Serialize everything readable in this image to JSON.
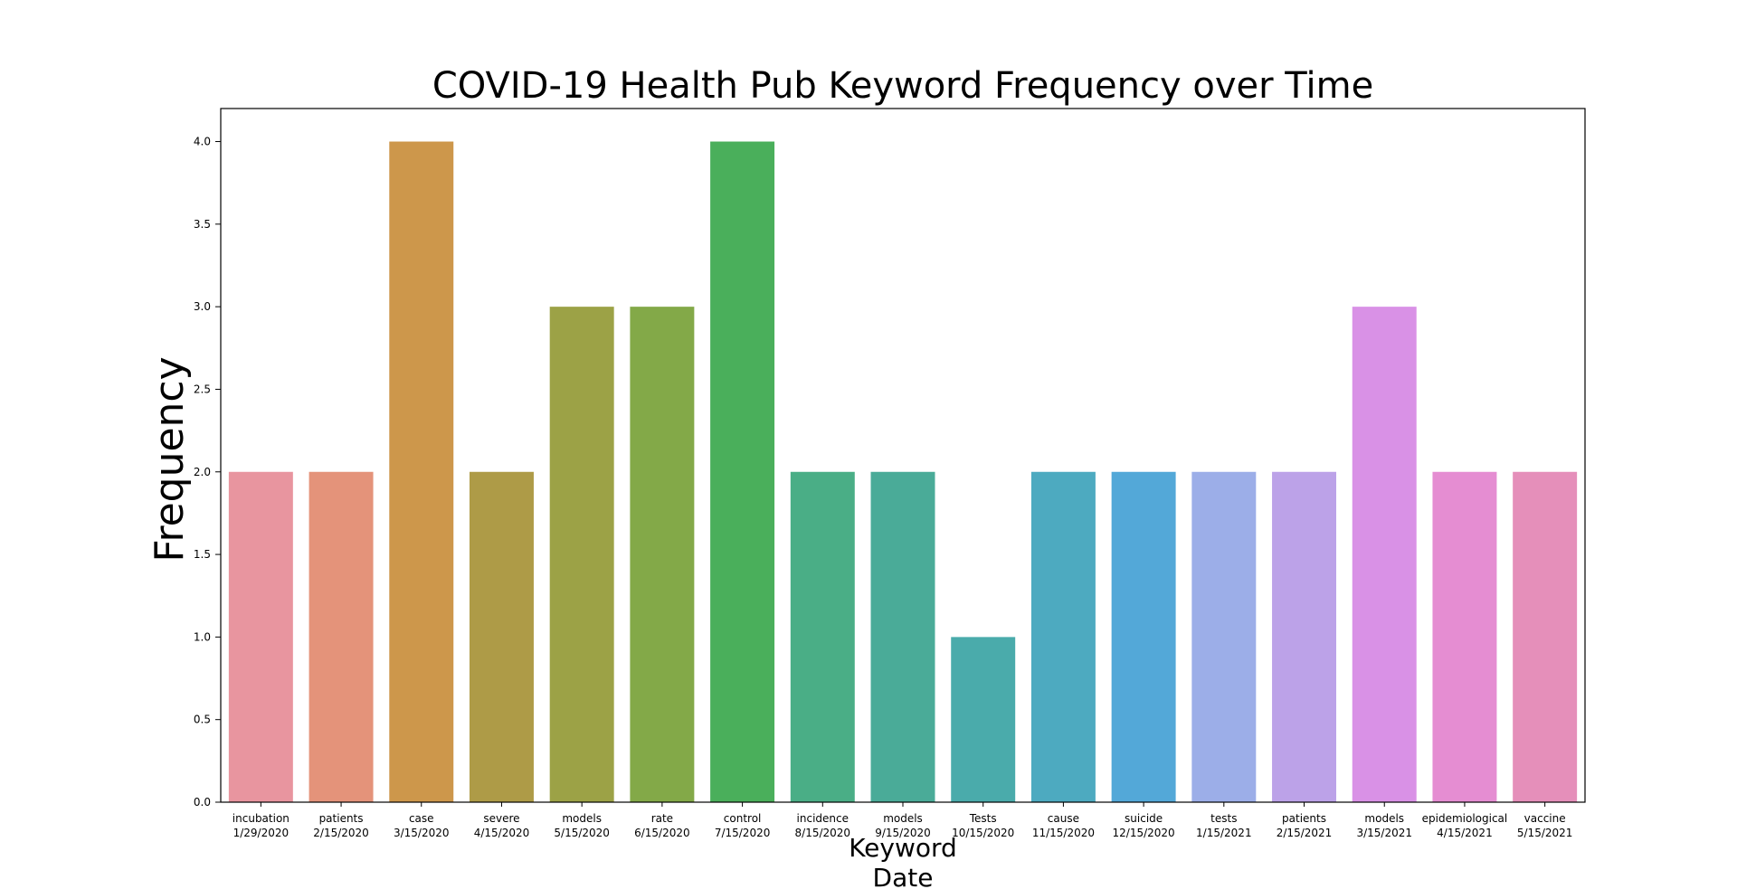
{
  "chart_data": {
    "type": "bar",
    "title": "COVID-19 Health Pub Keyword Frequency over Time",
    "ylabel": "Frequency",
    "xlabel_lines": [
      "Keyword",
      "Date"
    ],
    "ylim": [
      0,
      4.2
    ],
    "yticks": [
      "0.0",
      "0.5",
      "1.0",
      "1.5",
      "2.0",
      "2.5",
      "3.0",
      "3.5",
      "4.0"
    ],
    "grid": false,
    "categories": [
      {
        "keyword": "incubation",
        "date": "1/29/2020",
        "value": 2,
        "color": "#e8959f"
      },
      {
        "keyword": "patients",
        "date": "2/15/2020",
        "value": 2,
        "color": "#e4937a"
      },
      {
        "keyword": "case",
        "date": "3/15/2020",
        "value": 4,
        "color": "#cd974b"
      },
      {
        "keyword": "severe",
        "date": "4/15/2020",
        "value": 2,
        "color": "#ae9b47"
      },
      {
        "keyword": "models",
        "date": "5/15/2020",
        "value": 3,
        "color": "#9ca246"
      },
      {
        "keyword": "rate",
        "date": "6/15/2020",
        "value": 3,
        "color": "#83a948"
      },
      {
        "keyword": "control",
        "date": "7/15/2020",
        "value": 4,
        "color": "#4aaf5b"
      },
      {
        "keyword": "incidence",
        "date": "8/15/2020",
        "value": 2,
        "color": "#4aae86"
      },
      {
        "keyword": "models",
        "date": "9/15/2020",
        "value": 2,
        "color": "#4aab98"
      },
      {
        "keyword": "Tests",
        "date": "10/15/2020",
        "value": 1,
        "color": "#4aabab"
      },
      {
        "keyword": "cause",
        "date": "11/15/2020",
        "value": 2,
        "color": "#4daac0"
      },
      {
        "keyword": "suicide",
        "date": "12/15/2020",
        "value": 2,
        "color": "#53a8d8"
      },
      {
        "keyword": "tests",
        "date": "1/15/2021",
        "value": 2,
        "color": "#9caee8"
      },
      {
        "keyword": "patients",
        "date": "2/15/2021",
        "value": 2,
        "color": "#bca2e8"
      },
      {
        "keyword": "models",
        "date": "3/15/2021",
        "value": 3,
        "color": "#d991e6"
      },
      {
        "keyword": "epidemiological",
        "date": "4/15/2021",
        "value": 2,
        "color": "#e58dd2"
      },
      {
        "keyword": "vaccine",
        "date": "5/15/2021",
        "value": 2,
        "color": "#e58fba"
      }
    ]
  }
}
